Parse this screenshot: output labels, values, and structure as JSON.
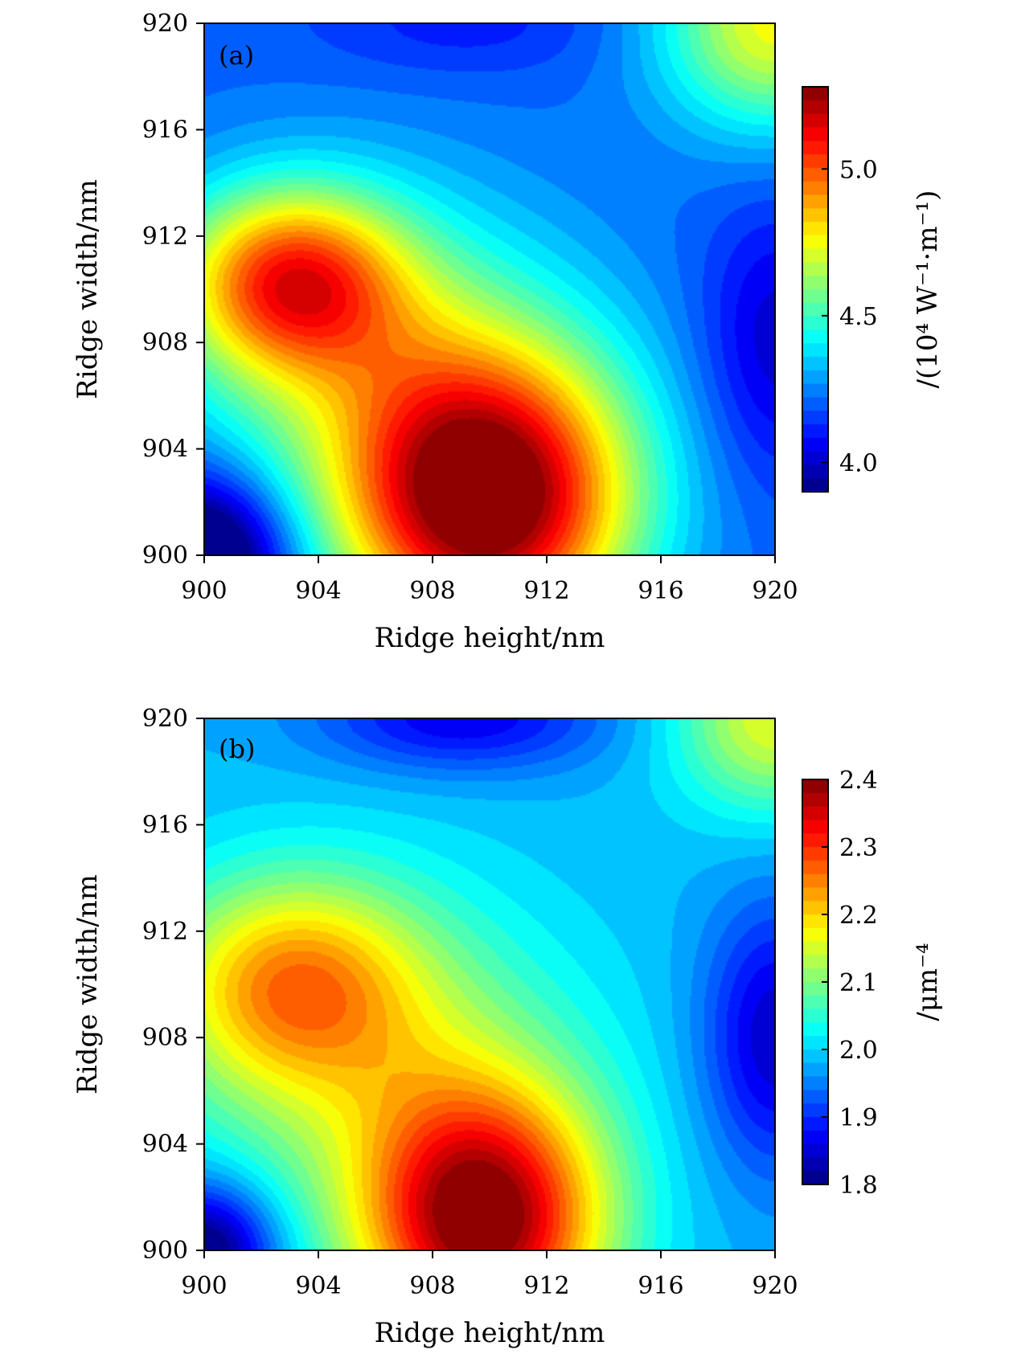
{
  "chart_data": [
    {
      "type": "heatmap",
      "panel_label": "(a)",
      "xlabel": "Ridge height/nm",
      "ylabel": "Ridge width/nm",
      "xlim": [
        900,
        920
      ],
      "ylim": [
        900,
        920
      ],
      "xticks": [
        "900",
        "904",
        "908",
        "912",
        "916",
        "920"
      ],
      "yticks": [
        "900",
        "904",
        "908",
        "912",
        "916",
        "920"
      ],
      "colorbar": {
        "label": "/(10⁴ W⁻¹·m⁻¹)",
        "range": [
          3.9,
          5.28
        ],
        "ticks": [
          "4.0",
          "4.5",
          "5.0"
        ],
        "tick_values": [
          4.0,
          4.5,
          5.0
        ],
        "levels": 30,
        "colormap": "jet"
      },
      "peaks": [
        {
          "height": 910,
          "width": 902,
          "value": 5.25
        },
        {
          "height": 903,
          "width": 910.3,
          "value": 5.05
        }
      ],
      "corner_values": {
        "h900_w900": 3.9,
        "h920_w920": 4.75,
        "h920_w908": 4.15,
        "h909_w920": 4.2
      }
    },
    {
      "type": "heatmap",
      "panel_label": "(b)",
      "xlabel": "Ridge height/nm",
      "ylabel": "Ridge width/nm",
      "xlim": [
        900,
        920
      ],
      "ylim": [
        900,
        920
      ],
      "xticks": [
        "900",
        "904",
        "908",
        "912",
        "916",
        "920"
      ],
      "yticks": [
        "900",
        "904",
        "908",
        "912",
        "916",
        "920"
      ],
      "colorbar": {
        "label": "/μm⁻⁴",
        "range": [
          1.8,
          2.4
        ],
        "ticks": [
          "1.8",
          "1.9",
          "2.0",
          "2.1",
          "2.2",
          "2.3",
          "2.4"
        ],
        "tick_values": [
          1.8,
          1.9,
          2.0,
          2.1,
          2.2,
          2.3,
          2.4
        ],
        "levels": 30,
        "colormap": "jet"
      },
      "peaks": [
        {
          "height": 909.8,
          "width": 901,
          "value": 2.39
        },
        {
          "height": 903,
          "width": 910,
          "value": 2.25
        }
      ],
      "corner_values": {
        "h900_w900": 1.86,
        "h920_w920": 2.15,
        "h920_w908": 1.85,
        "h909_w920": 1.87
      }
    }
  ]
}
